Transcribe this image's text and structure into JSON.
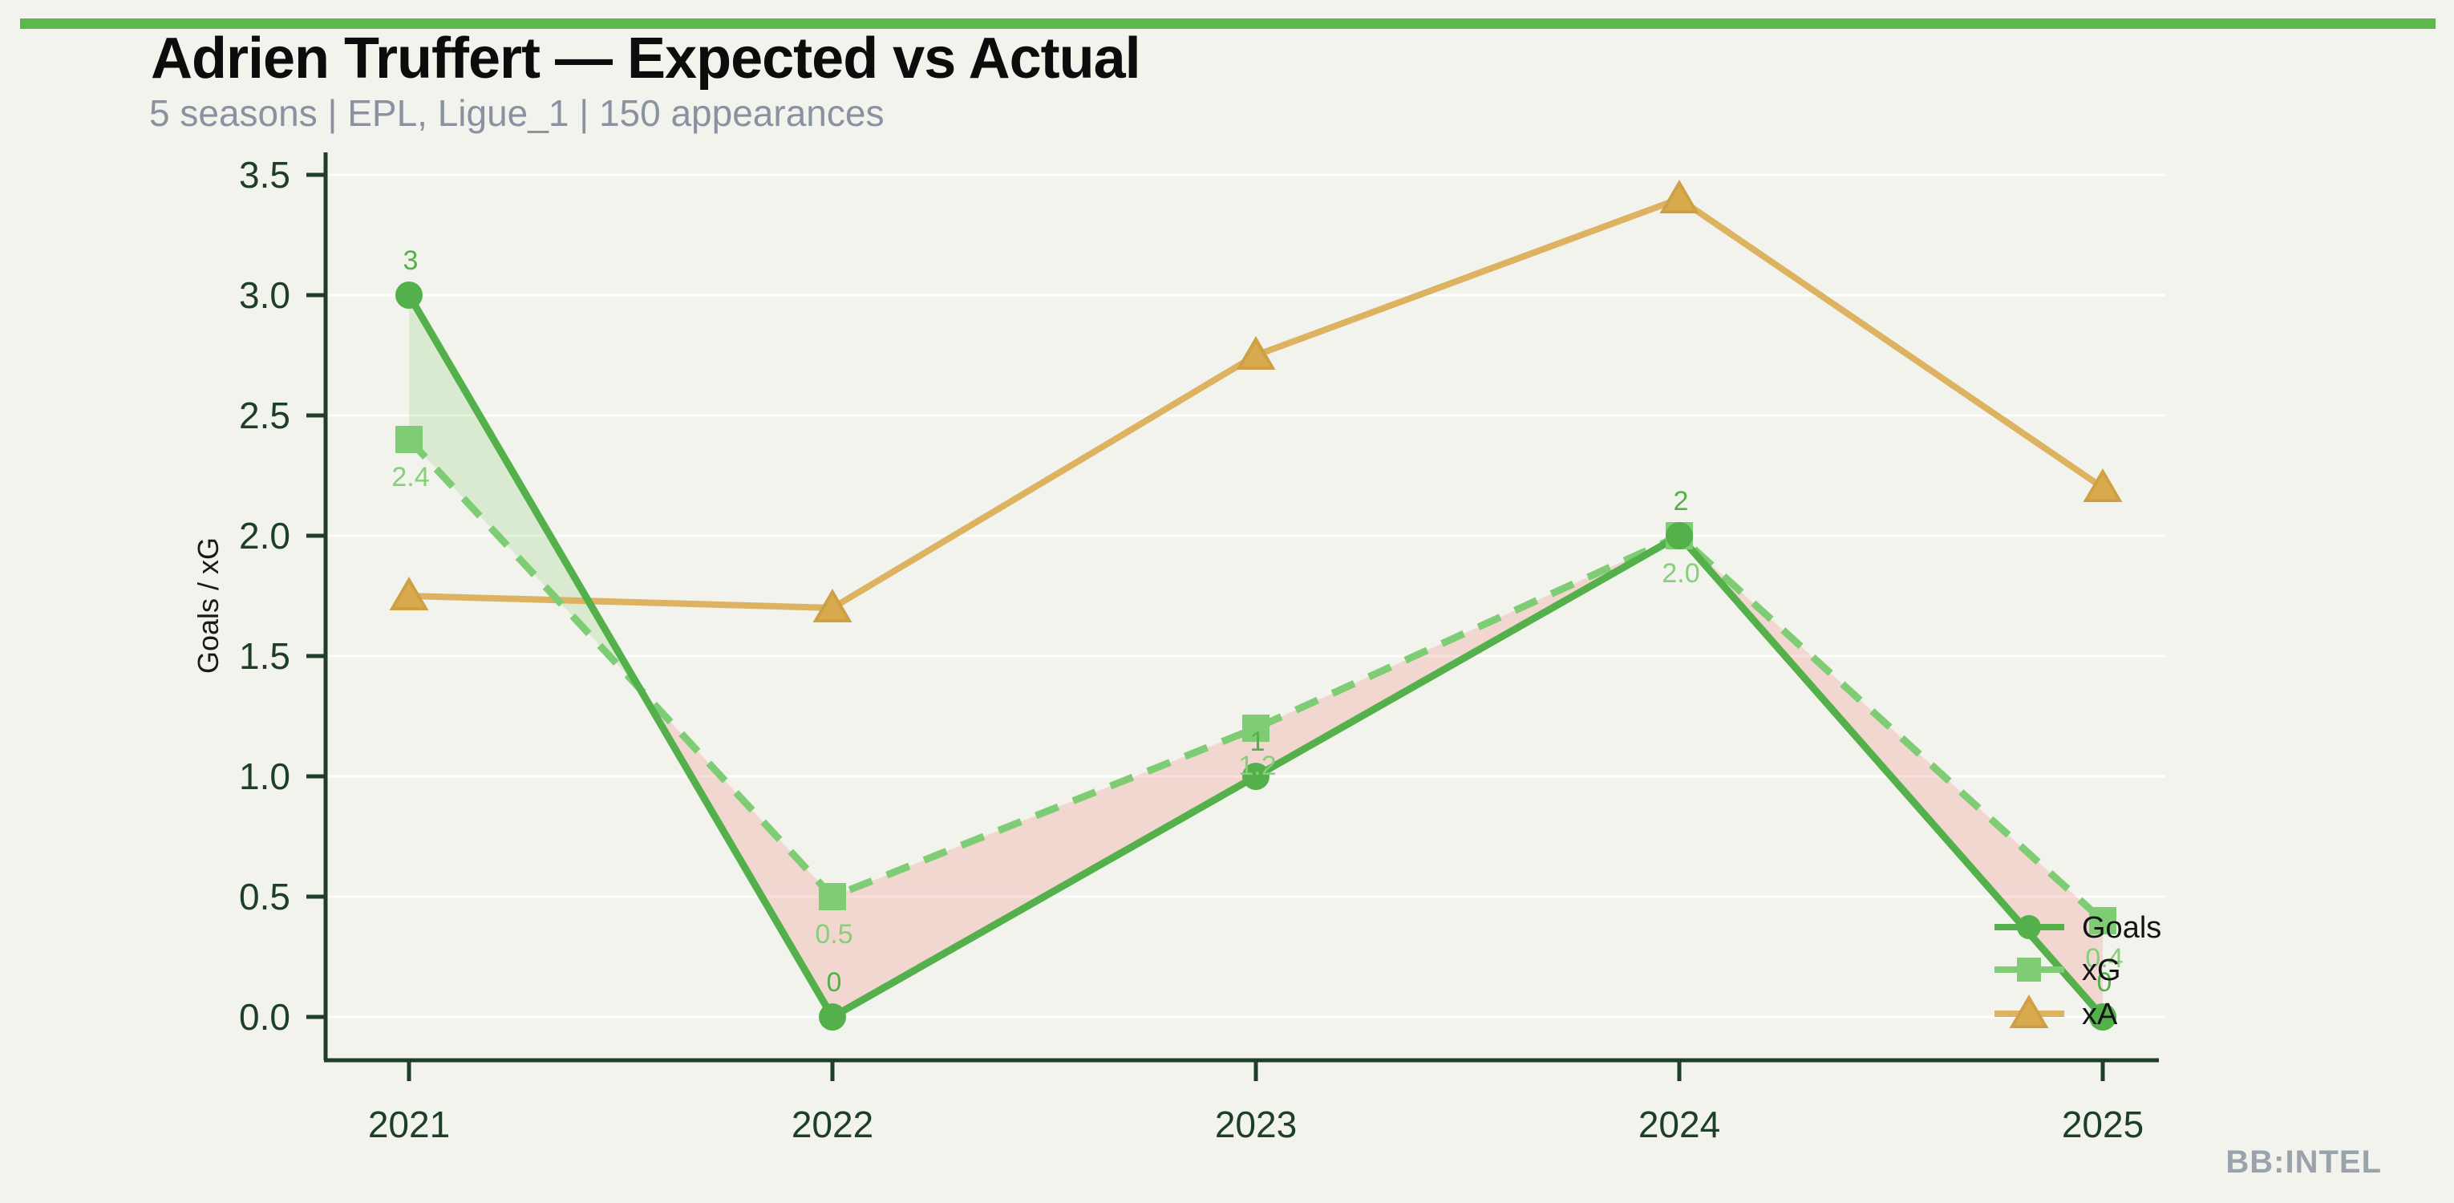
{
  "header": {
    "title": "Adrien Truffert — Expected vs Actual",
    "subtitle": "5 seasons | EPL, Ligue_1 | 150 appearances",
    "accent_color": "#5bb84c"
  },
  "footer": {
    "brand": "BB:INTEL"
  },
  "colors": {
    "background": "#f2f3ec",
    "axis": "#1e3e28",
    "tick_label": "#1e3e28",
    "goals": "#53b04a",
    "xg": "#7ecd74",
    "xg_label": "#86cf7b",
    "xa_line": "#ddb261",
    "xa_marker_fill": "#d9a94e",
    "xa_marker_stroke": "#cfa043",
    "fill_goals_above": "rgba(126,205,116,0.22)",
    "fill_xg_above": "rgba(240,130,125,0.25)",
    "gridline": "rgba(255,255,255,0.8)",
    "legend_text": "#141414",
    "ylabel_text": "#1a1a1a"
  },
  "chart_data": {
    "type": "line",
    "title": "Adrien Truffert — Expected vs Actual",
    "subtitle": "5 seasons | EPL, Ligue_1 | 150 appearances",
    "x": [
      2021,
      2022,
      2023,
      2024,
      2025
    ],
    "xlabel": "",
    "ylabel": "Goals / xG",
    "ylim": [
      0,
      3.5
    ],
    "ytick_step": 0.5,
    "grid": true,
    "legend_position": "lower right",
    "series": [
      {
        "name": "Goals",
        "marker": "circle",
        "line_style": "solid",
        "values": [
          3,
          0,
          1,
          2,
          0
        ],
        "point_labels": [
          "3",
          "0",
          "1",
          "2",
          "0"
        ]
      },
      {
        "name": "xG",
        "marker": "square",
        "line_style": "dashed",
        "values": [
          2.4,
          0.5,
          1.2,
          2.0,
          0.4
        ],
        "point_labels": [
          "2.4",
          "0.5",
          "1.2",
          "2.0",
          "0.4"
        ]
      },
      {
        "name": "xA",
        "marker": "triangle",
        "line_style": "solid",
        "values": [
          1.75,
          1.7,
          2.75,
          3.4,
          2.2
        ],
        "point_labels": []
      }
    ]
  }
}
